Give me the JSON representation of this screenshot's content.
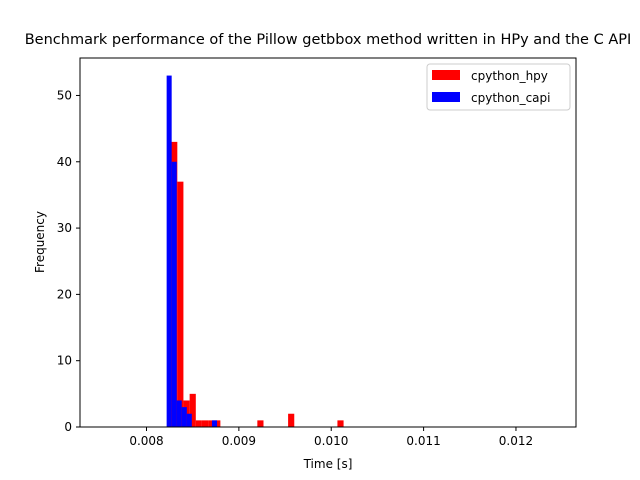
{
  "chart_data": {
    "type": "bar",
    "title": "Benchmark performance of the Pillow getbbox method written in HPy and the C API",
    "xlabel": "Time [s]",
    "ylabel": "Frequency",
    "xlim": [
      0.00728,
      0.01265
    ],
    "ylim": [
      0,
      55.65
    ],
    "x_ticks": [
      0.008,
      0.009,
      0.01,
      0.011,
      0.012
    ],
    "x_tick_labels": [
      "0.008",
      "0.009",
      "0.010",
      "0.011",
      "0.012"
    ],
    "y_ticks": [
      0,
      10,
      20,
      30,
      40,
      50
    ],
    "y_tick_labels": [
      "0",
      "10",
      "20",
      "30",
      "40",
      "50"
    ],
    "grid": false,
    "legend_position": "top-right",
    "series": [
      {
        "name": "cpython_hpy",
        "color": "#ff0000",
        "bin_width": 6.67e-05,
        "bins": [
          {
            "x": 0.008267,
            "count": 43
          },
          {
            "x": 0.008333,
            "count": 37
          },
          {
            "x": 0.0084,
            "count": 4
          },
          {
            "x": 0.008467,
            "count": 5
          },
          {
            "x": 0.008533,
            "count": 1
          },
          {
            "x": 0.0086,
            "count": 1
          },
          {
            "x": 0.008667,
            "count": 1
          },
          {
            "x": 0.008733,
            "count": 1
          },
          {
            "x": 0.0092,
            "count": 1
          },
          {
            "x": 0.009533,
            "count": 2
          },
          {
            "x": 0.010067,
            "count": 1
          }
        ]
      },
      {
        "name": "cpython_capi",
        "color": "#0000ff",
        "bin_width": 5.45e-05,
        "bins": [
          {
            "x": 0.008218,
            "count": 53
          },
          {
            "x": 0.008273,
            "count": 40
          },
          {
            "x": 0.008327,
            "count": 4
          },
          {
            "x": 0.008382,
            "count": 3
          },
          {
            "x": 0.008436,
            "count": 2
          },
          {
            "x": 0.008709,
            "count": 1
          }
        ]
      }
    ]
  }
}
